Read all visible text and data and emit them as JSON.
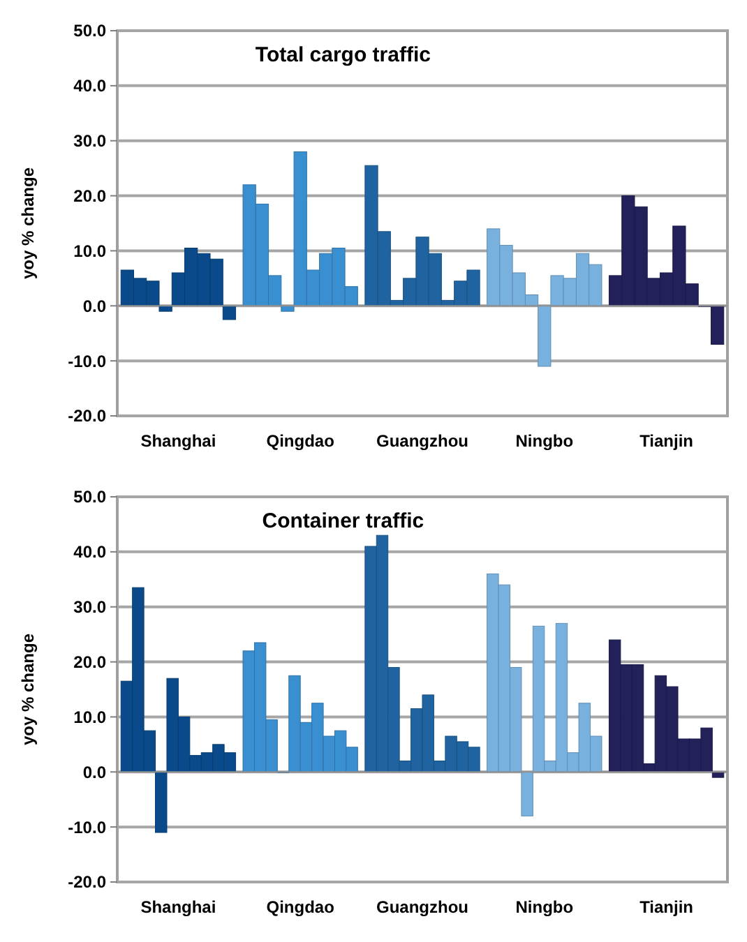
{
  "chart_data": [
    {
      "type": "bar",
      "title": "Total cargo traffic",
      "ylabel": "yoy % change",
      "categories": [
        "Shanghai",
        "Qingdao",
        "Guangzhou",
        "Ningbo",
        "Tianjin"
      ],
      "ylim": [
        -20,
        50
      ],
      "yticks": [
        {
          "value": -20,
          "label": "-20.0"
        },
        {
          "value": -10,
          "label": "-10.0"
        },
        {
          "value": 0,
          "label": "0.0"
        },
        {
          "value": 10,
          "label": "10.0"
        },
        {
          "value": 20,
          "label": "20.0"
        },
        {
          "value": 30,
          "label": "30.0"
        },
        {
          "value": 40,
          "label": "40.0"
        },
        {
          "value": 50,
          "label": "50.0"
        }
      ],
      "grid": "y",
      "series": [
        {
          "colors": [
            "#0a4a8a",
            "#3a8fd0",
            "#1f64a0",
            "#78b0de",
            "#22215a"
          ],
          "values": [
            6.5,
            22,
            25.5,
            14,
            5.5
          ]
        },
        {
          "colors": [
            "#0a4a8a",
            "#3a8fd0",
            "#1f64a0",
            "#78b0de",
            "#22215a"
          ],
          "values": [
            5,
            18.5,
            13.5,
            11,
            20
          ]
        },
        {
          "colors": [
            "#0a4a8a",
            "#3a8fd0",
            "#1f64a0",
            "#78b0de",
            "#22215a"
          ],
          "values": [
            4.5,
            5.5,
            1,
            6,
            18
          ]
        },
        {
          "colors": [
            "#0a4a8a",
            "#3a8fd0",
            "#1f64a0",
            "#78b0de",
            "#22215a"
          ],
          "values": [
            -1,
            -1,
            5,
            2,
            5
          ]
        },
        {
          "colors": [
            "#0a4a8a",
            "#3a8fd0",
            "#1f64a0",
            "#78b0de",
            "#22215a"
          ],
          "values": [
            6,
            28,
            12.5,
            -11,
            6
          ]
        },
        {
          "colors": [
            "#0a4a8a",
            "#3a8fd0",
            "#1f64a0",
            "#78b0de",
            "#22215a"
          ],
          "values": [
            10.5,
            6.5,
            9.5,
            5.5,
            14.5
          ]
        },
        {
          "colors": [
            "#0a4a8a",
            "#3a8fd0",
            "#1f64a0",
            "#78b0de",
            "#22215a"
          ],
          "values": [
            9.5,
            9.5,
            1,
            5,
            4
          ]
        },
        {
          "colors": [
            "#0a4a8a",
            "#3a8fd0",
            "#1f64a0",
            "#78b0de",
            "#22215a"
          ],
          "values": [
            8.5,
            10.5,
            4.5,
            9.5,
            0
          ]
        },
        {
          "colors": [
            "#0a4a8a",
            "#3a8fd0",
            "#1f64a0",
            "#78b0de",
            "#22215a"
          ],
          "values": [
            -2.5,
            3.5,
            6.5,
            7.5,
            -7
          ]
        }
      ]
    },
    {
      "type": "bar",
      "title": "Container traffic",
      "ylabel": "yoy % change",
      "categories": [
        "Shanghai",
        "Qingdao",
        "Guangzhou",
        "Ningbo",
        "Tianjin"
      ],
      "ylim": [
        -20,
        50
      ],
      "yticks": [
        {
          "value": -20,
          "label": "-20.0"
        },
        {
          "value": -10,
          "label": "-10.0"
        },
        {
          "value": 0,
          "label": "0.0"
        },
        {
          "value": 10,
          "label": "10.0"
        },
        {
          "value": 20,
          "label": "20.0"
        },
        {
          "value": 30,
          "label": "30.0"
        },
        {
          "value": 40,
          "label": "40.0"
        },
        {
          "value": 50,
          "label": "50.0"
        }
      ],
      "grid": "y",
      "series": [
        {
          "colors": [
            "#0a4a8a",
            "#3a8fd0",
            "#1f64a0",
            "#78b0de",
            "#22215a"
          ],
          "values": [
            16.5,
            22,
            41,
            36,
            24
          ]
        },
        {
          "colors": [
            "#0a4a8a",
            "#3a8fd0",
            "#1f64a0",
            "#78b0de",
            "#22215a"
          ],
          "values": [
            33.5,
            23.5,
            43,
            34,
            19.5
          ]
        },
        {
          "colors": [
            "#0a4a8a",
            "#3a8fd0",
            "#1f64a0",
            "#78b0de",
            "#22215a"
          ],
          "values": [
            7.5,
            9.5,
            19,
            19,
            19.5
          ]
        },
        {
          "colors": [
            "#0a4a8a",
            "#3a8fd0",
            "#1f64a0",
            "#78b0de",
            "#22215a"
          ],
          "values": [
            -11,
            0,
            2,
            -8,
            1.5
          ]
        },
        {
          "colors": [
            "#0a4a8a",
            "#3a8fd0",
            "#1f64a0",
            "#78b0de",
            "#22215a"
          ],
          "values": [
            17,
            17.5,
            11.5,
            26.5,
            17.5
          ]
        },
        {
          "colors": [
            "#0a4a8a",
            "#3a8fd0",
            "#1f64a0",
            "#78b0de",
            "#22215a"
          ],
          "values": [
            10,
            9,
            14,
            2,
            15.5
          ]
        },
        {
          "colors": [
            "#0a4a8a",
            "#3a8fd0",
            "#1f64a0",
            "#78b0de",
            "#22215a"
          ],
          "values": [
            3,
            12.5,
            2,
            27,
            6
          ]
        },
        {
          "colors": [
            "#0a4a8a",
            "#3a8fd0",
            "#1f64a0",
            "#78b0de",
            "#22215a"
          ],
          "values": [
            3.5,
            6.5,
            6.5,
            3.5,
            6
          ]
        },
        {
          "colors": [
            "#0a4a8a",
            "#3a8fd0",
            "#1f64a0",
            "#78b0de",
            "#22215a"
          ],
          "values": [
            5,
            7.5,
            5.5,
            12.5,
            8
          ]
        },
        {
          "colors": [
            "#0a4a8a",
            "#3a8fd0",
            "#1f64a0",
            "#78b0de",
            "#22215a"
          ],
          "values": [
            3.5,
            4.5,
            4.5,
            6.5,
            -1
          ]
        }
      ]
    }
  ]
}
